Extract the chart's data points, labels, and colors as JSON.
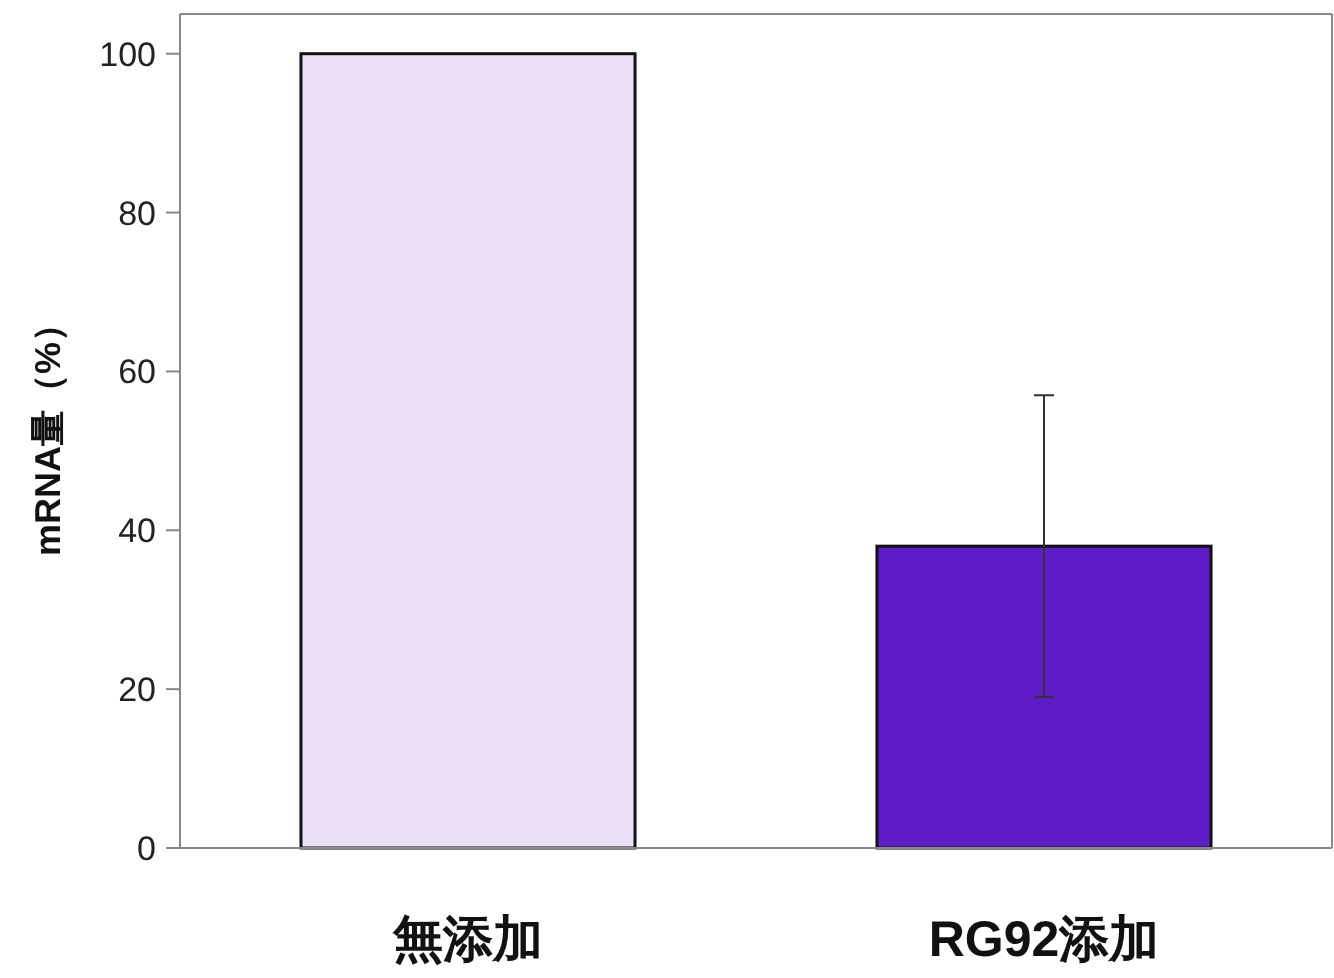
{
  "chart_data": {
    "type": "bar",
    "ylabel": "mRNA量（%）",
    "categories": [
      "無添加",
      "RG92添加"
    ],
    "values": [
      100,
      38
    ],
    "errors": [
      null,
      19
    ],
    "colors": [
      "#ece0f8",
      "#5e1cc9"
    ],
    "ylim": [
      0,
      105
    ],
    "yticks": [
      0,
      20,
      40,
      60,
      80,
      100
    ],
    "grid": false
  }
}
